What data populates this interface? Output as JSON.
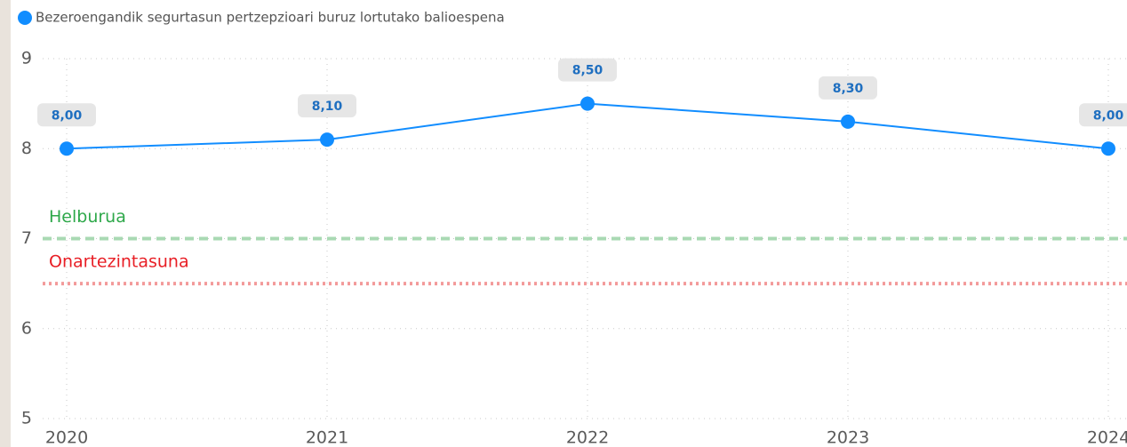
{
  "chart_data": {
    "type": "line",
    "categories": [
      "2020",
      "2021",
      "2022",
      "2023",
      "2024"
    ],
    "series": [
      {
        "name": "Bezeroengandik segurtasun pertzepzioari buruz lortutako balioespena",
        "color": "#118dff",
        "values": [
          8.0,
          8.1,
          8.5,
          8.3,
          8.0
        ],
        "value_labels": [
          "8,00",
          "8,10",
          "8,50",
          "8,30",
          "8,00"
        ]
      }
    ],
    "ylim": [
      5,
      9
    ],
    "yticks": [
      5,
      6,
      7,
      8,
      9
    ],
    "grid": true,
    "reference_lines": [
      {
        "label": "Helburua",
        "value": 7,
        "line_color": "#a9d9b3",
        "label_color": "#2ea84a",
        "style": "dashed"
      },
      {
        "label": "Onartezintasuna",
        "value": 6.5,
        "line_color": "#f39a9a",
        "label_color": "#e81e25",
        "style": "dotted"
      }
    ]
  }
}
